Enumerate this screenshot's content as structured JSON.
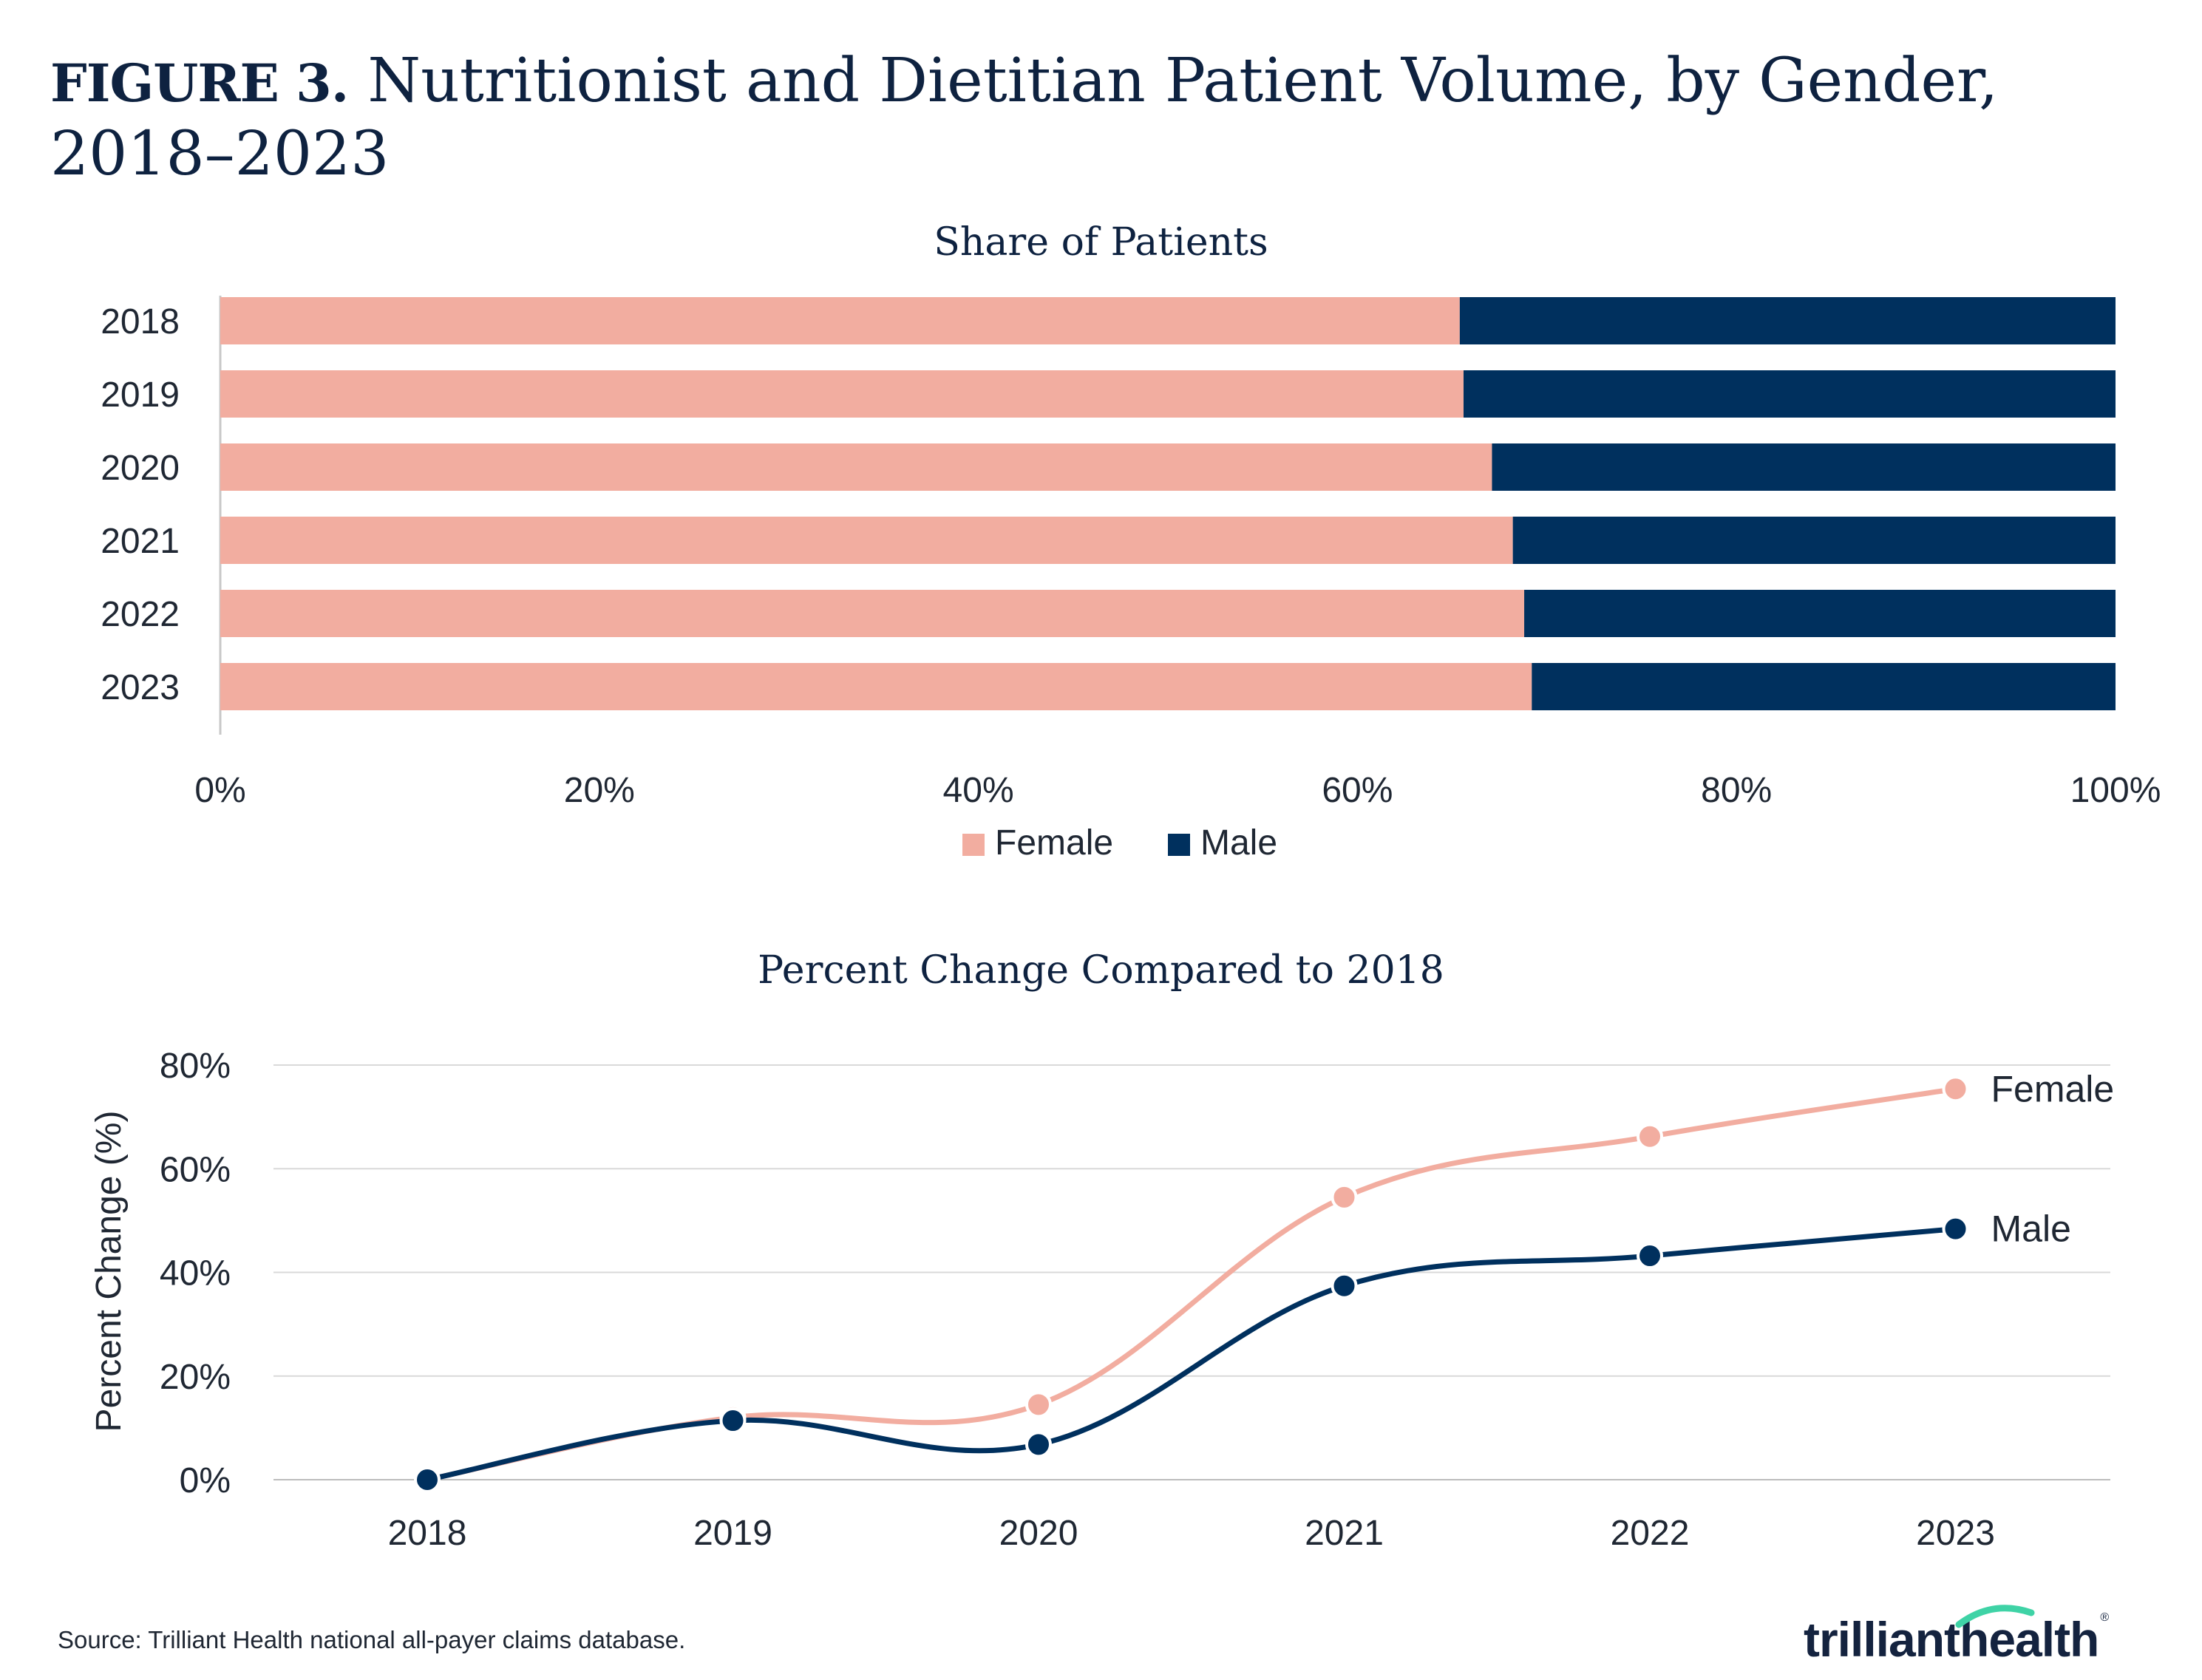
{
  "figure": {
    "prefix": "FIGURE 3.",
    "title_line1": "Nutritionist and Dietitian Patient Volume, by Gender,",
    "title_line2": "2018–2023"
  },
  "colors": {
    "female": "#f2ada0",
    "male": "#00305e",
    "grid": "#d9d9d9",
    "axis": "#c8c8c8",
    "text": "#1f2733"
  },
  "chart_data": [
    {
      "type": "bar",
      "orientation": "horizontal",
      "stacked": true,
      "title": "Share of Patients",
      "categories": [
        "2018",
        "2019",
        "2020",
        "2021",
        "2022",
        "2023"
      ],
      "series": [
        {
          "name": "Female",
          "values": [
            65.4,
            65.6,
            67.1,
            68.2,
            68.8,
            69.2
          ]
        },
        {
          "name": "Male",
          "values": [
            34.6,
            34.4,
            32.9,
            31.8,
            31.2,
            30.8
          ]
        }
      ],
      "xlim": [
        0,
        100
      ],
      "xticks": [
        "0%",
        "20%",
        "40%",
        "60%",
        "80%",
        "100%"
      ],
      "legend": [
        "Female",
        "Male"
      ],
      "legend_position": "bottom-center"
    },
    {
      "type": "line",
      "title": "Percent Change Compared to 2018",
      "x": [
        "2018",
        "2019",
        "2020",
        "2021",
        "2022",
        "2023"
      ],
      "series": [
        {
          "name": "Female",
          "values": [
            0,
            12,
            14.5,
            54.5,
            66.2,
            75.4
          ]
        },
        {
          "name": "Male",
          "values": [
            0,
            11.4,
            6.8,
            37.4,
            43.2,
            48.4
          ]
        }
      ],
      "ylabel": "Percent Change (%)",
      "ylim": [
        0,
        80
      ],
      "yticks": [
        "0%",
        "20%",
        "40%",
        "60%",
        "80%"
      ],
      "grid": true,
      "labels": [
        "Female",
        "Male"
      ]
    }
  ],
  "source": "Source: Trilliant Health national all-payer claims database.",
  "logo": {
    "part1": "trilliant",
    "part2": "health",
    "reg": "®"
  }
}
